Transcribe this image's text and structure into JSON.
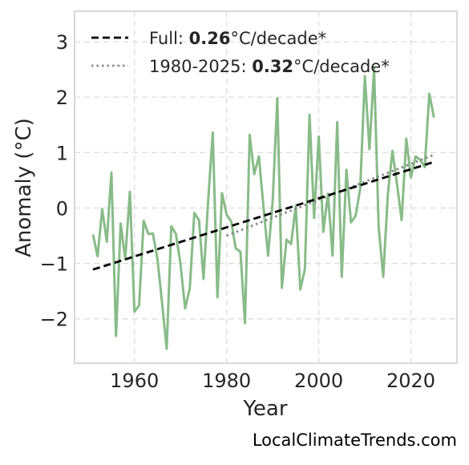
{
  "chart_data": {
    "type": "line",
    "xlabel": "Year",
    "ylabel": "Anomaly (°C)",
    "xlim": [
      1947,
      2030
    ],
    "ylim": [
      -2.8,
      3.55
    ],
    "xticks": [
      1960,
      1980,
      2000,
      2020
    ],
    "yticks": [
      -2,
      -1,
      0,
      1,
      2,
      3
    ],
    "grid": true,
    "legend_position": "top-left",
    "x": [
      1951,
      1952,
      1953,
      1954,
      1955,
      1956,
      1957,
      1958,
      1959,
      1960,
      1961,
      1962,
      1963,
      1964,
      1965,
      1966,
      1967,
      1968,
      1969,
      1970,
      1971,
      1972,
      1973,
      1974,
      1975,
      1976,
      1977,
      1978,
      1979,
      1980,
      1981,
      1982,
      1983,
      1984,
      1985,
      1986,
      1987,
      1988,
      1989,
      1990,
      1991,
      1992,
      1993,
      1994,
      1995,
      1996,
      1997,
      1998,
      1999,
      2000,
      2001,
      2002,
      2003,
      2004,
      2005,
      2006,
      2007,
      2008,
      2009,
      2010,
      2011,
      2012,
      2013,
      2014,
      2015,
      2016,
      2017,
      2018,
      2019,
      2020,
      2021,
      2022,
      2023,
      2024,
      2025
    ],
    "series": [
      {
        "color": "#88bb88",
        "values": [
          -0.48,
          -0.87,
          -0.02,
          -0.61,
          0.64,
          -2.31,
          -0.28,
          -0.92,
          0.29,
          -1.87,
          -1.76,
          -0.23,
          -0.47,
          -0.46,
          -0.92,
          -1.72,
          -2.54,
          -0.33,
          -0.47,
          -1.02,
          -1.81,
          -1.45,
          -0.09,
          -0.22,
          -1.28,
          0.15,
          1.36,
          -1.61,
          0.27,
          -0.12,
          -0.24,
          -0.73,
          -0.79,
          -2.08,
          1.32,
          0.61,
          0.93,
          0.03,
          -0.86,
          0.12,
          1.98,
          -1.44,
          -0.57,
          -0.65,
          0.04,
          -1.47,
          -1.1,
          1.68,
          -0.18,
          1.29,
          -0.43,
          0.26,
          -0.86,
          1.55,
          -1.24,
          0.69,
          -0.26,
          -0.14,
          0.35,
          2.38,
          1.06,
          2.51,
          -0.34,
          -1.24,
          0.25,
          1.03,
          0.42,
          -0.22,
          1.25,
          0.55,
          0.93,
          0.87,
          0.74,
          2.06,
          1.63
        ]
      },
      {
        "name": "Full",
        "style": "dashed",
        "color": "#000000",
        "x": [
          1951,
          2025
        ],
        "values": [
          -1.11,
          0.83
        ]
      },
      {
        "name": "1980-2025",
        "style": "dotted",
        "color": "#888888",
        "x": [
          1980,
          2025
        ],
        "values": [
          -0.5,
          0.96
        ]
      }
    ],
    "legend": [
      {
        "prefix": "Full: ",
        "value": "0.26",
        "suffix": "°C/decade*",
        "style": "dashed",
        "color": "#000000"
      },
      {
        "prefix": "1980-2025: ",
        "value": "0.32",
        "suffix": "°C/decade*",
        "style": "dotted",
        "color": "#888888"
      }
    ]
  },
  "watermark": "LocalClimateTrends.com"
}
